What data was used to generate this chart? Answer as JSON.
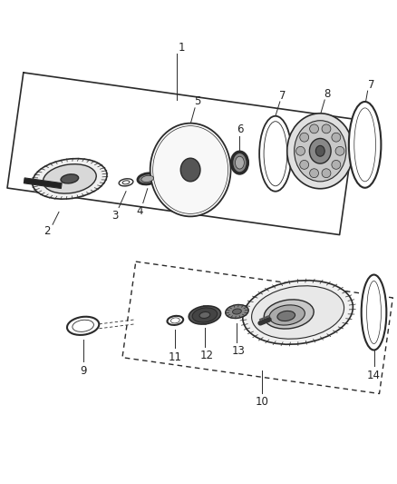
{
  "bg_color": "#ffffff",
  "line_color": "#2a2a2a",
  "text_color": "#222222",
  "fig_width": 4.38,
  "fig_height": 5.33,
  "dpi": 100
}
